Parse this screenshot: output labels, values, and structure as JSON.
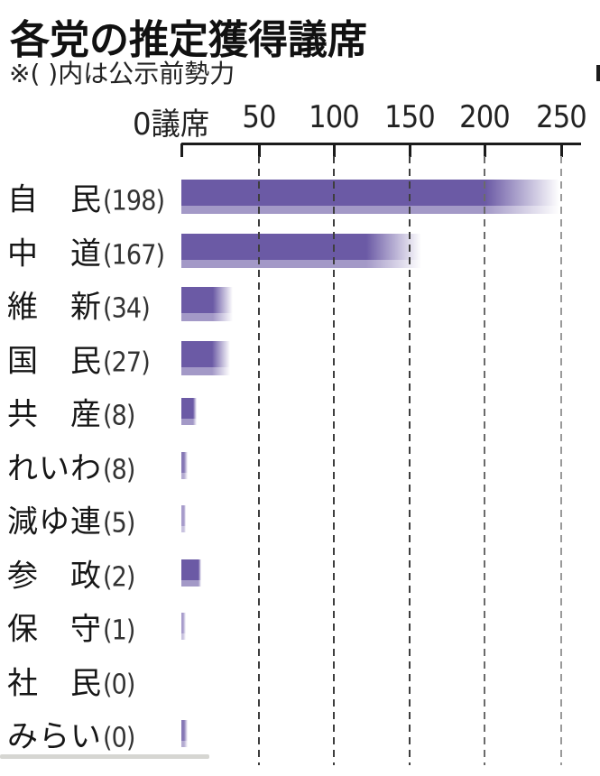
{
  "chart_data": {
    "type": "bar",
    "title": "各党の推定獲得議席",
    "note": "※( )内は公示前勢力",
    "unit": "議席",
    "orientation": "horizontal",
    "x_axis": {
      "tick_labels": [
        "0議席",
        "50",
        "100",
        "150",
        "200",
        "250"
      ],
      "ticks": [
        0,
        50,
        100,
        150,
        200,
        250
      ],
      "max": 250,
      "gridlines": "dashed-vertical"
    },
    "bar_style_note": "bars fade out toward the right tip, indicating projected seat range; lighter strip along bar bottom",
    "bar_colors": {
      "dark": "#6B5AA5",
      "medium": "#8678B5",
      "light": "#A79CCB"
    },
    "gridline_colors": {
      "dark": "#3e3e3e",
      "medium": "#6a6a6a",
      "light": "#9a9a9a"
    },
    "parties": [
      {
        "name": "自民",
        "name_display": "自民",
        "pre_seats": 198,
        "pre_label": "(198)",
        "bar_solid_end": 200,
        "bar_fade_end": 249,
        "tone": "dark"
      },
      {
        "name": "中道",
        "name_display": "中道",
        "pre_seats": 167,
        "pre_label": "(167)",
        "bar_solid_end": 122,
        "bar_fade_end": 158,
        "tone": "dark"
      },
      {
        "name": "維新",
        "name_display": "維新",
        "pre_seats": 34,
        "pre_label": "(34)",
        "bar_solid_end": 21,
        "bar_fade_end": 34,
        "tone": "dark"
      },
      {
        "name": "国民",
        "name_display": "国民",
        "pre_seats": 27,
        "pre_label": "(27)",
        "bar_solid_end": 20,
        "bar_fade_end": 32,
        "tone": "dark"
      },
      {
        "name": "共産",
        "name_display": "共産",
        "pre_seats": 8,
        "pre_label": "(8)",
        "bar_solid_end": 8,
        "bar_fade_end": 10,
        "tone": "dark"
      },
      {
        "name": "れいわ",
        "name_display": "れいわ",
        "pre_seats": 8,
        "pre_label": "(8)",
        "bar_solid_end": 2,
        "bar_fade_end": 4,
        "tone": "medium"
      },
      {
        "name": "減ゆ連",
        "name_display": "減ゆ連",
        "pre_seats": 5,
        "pre_label": "(5)",
        "bar_solid_end": 2,
        "bar_fade_end": 3,
        "tone": "light"
      },
      {
        "name": "参政",
        "name_display": "参政",
        "pre_seats": 2,
        "pre_label": "(2)",
        "bar_solid_end": 11,
        "bar_fade_end": 13,
        "tone": "dark"
      },
      {
        "name": "保守",
        "name_display": "保守",
        "pre_seats": 1,
        "pre_label": "(1)",
        "bar_solid_end": 1,
        "bar_fade_end": 3,
        "tone": "light"
      },
      {
        "name": "社民",
        "name_display": "社民",
        "pre_seats": 0,
        "pre_label": "(0)",
        "bar_solid_end": 0,
        "bar_fade_end": 0,
        "tone": "dark"
      },
      {
        "name": "みらい",
        "name_display": "みらい",
        "pre_seats": 0,
        "pre_label": "(0)",
        "bar_solid_end": 2,
        "bar_fade_end": 4,
        "tone": "medium"
      }
    ]
  }
}
